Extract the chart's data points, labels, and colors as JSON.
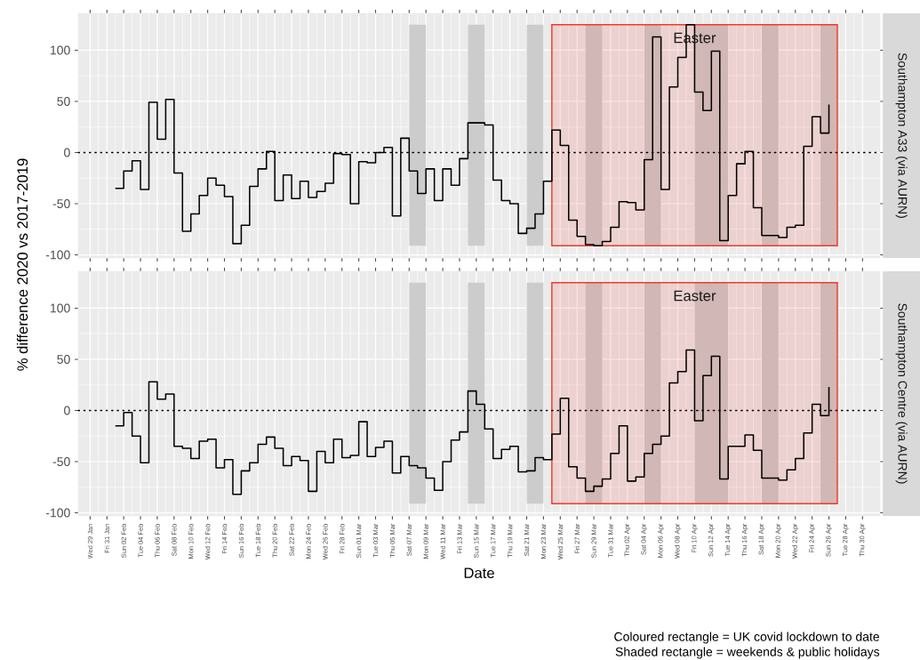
{
  "chart_data": [
    {
      "type": "step",
      "ylabel": "% difference 2020 vs 2017-2019",
      "x": [
        "2020-02-01",
        "2020-02-02",
        "2020-02-03",
        "2020-02-04",
        "2020-02-05",
        "2020-02-06",
        "2020-02-07",
        "2020-02-08",
        "2020-02-09",
        "2020-02-10",
        "2020-02-11",
        "2020-02-12",
        "2020-02-13",
        "2020-02-14",
        "2020-02-15",
        "2020-02-16",
        "2020-02-17",
        "2020-02-18",
        "2020-02-19",
        "2020-02-20",
        "2020-02-21",
        "2020-02-22",
        "2020-02-23",
        "2020-02-24",
        "2020-02-25",
        "2020-02-26",
        "2020-02-27",
        "2020-02-28",
        "2020-02-29",
        "2020-03-01",
        "2020-03-02",
        "2020-03-03",
        "2020-03-04",
        "2020-03-05",
        "2020-03-06",
        "2020-03-07",
        "2020-03-08",
        "2020-03-09",
        "2020-03-10",
        "2020-03-11",
        "2020-03-12",
        "2020-03-13",
        "2020-03-14",
        "2020-03-15",
        "2020-03-16",
        "2020-03-17",
        "2020-03-18",
        "2020-03-19",
        "2020-03-20",
        "2020-03-21",
        "2020-03-22",
        "2020-03-23",
        "2020-03-24",
        "2020-03-25",
        "2020-03-26",
        "2020-03-27",
        "2020-03-28",
        "2020-03-29",
        "2020-03-30",
        "2020-03-31",
        "2020-04-01",
        "2020-04-02",
        "2020-04-03",
        "2020-04-04",
        "2020-04-05",
        "2020-04-06",
        "2020-04-07",
        "2020-04-08",
        "2020-04-09",
        "2020-04-10",
        "2020-04-11",
        "2020-04-12",
        "2020-04-13",
        "2020-04-14",
        "2020-04-15",
        "2020-04-16",
        "2020-04-17",
        "2020-04-18",
        "2020-04-19",
        "2020-04-20",
        "2020-04-21",
        "2020-04-22",
        "2020-04-23",
        "2020-04-24",
        "2020-04-25",
        "2020-04-26"
      ],
      "series": [
        {
          "color": "#000000",
          "values": [
            -35,
            -18,
            -8,
            -36,
            49,
            13,
            52,
            -20,
            -77,
            -60,
            -42,
            -25,
            -32,
            -43,
            -89,
            -71,
            -33,
            -16,
            1,
            -47,
            -22,
            -45,
            -28,
            -44,
            -38,
            -30,
            -1,
            -2,
            -50,
            -9,
            -10,
            0,
            5,
            -62,
            14,
            -18,
            -40,
            -16,
            -47,
            -16,
            -32,
            -6,
            29,
            29,
            27,
            -27,
            -47,
            -50,
            -79,
            -74,
            -60,
            -28,
            22,
            7,
            -66,
            -82,
            -90,
            -91,
            -87,
            -73,
            -48,
            -49,
            -56,
            -7,
            113,
            -36,
            64,
            93,
            125,
            59,
            41,
            99,
            -86,
            -42,
            -11,
            1,
            -54,
            -81,
            -81,
            -83,
            -73,
            -71,
            6,
            35,
            19,
            47
          ]
        }
      ],
      "xlim": [
        "2020-01-27T14:00",
        "2020-05-02T02:00"
      ],
      "ylim": [
        -103,
        136
      ],
      "yticks": [
        -100,
        -50,
        0,
        50,
        100
      ],
      "xticks": [
        {
          "value": "2020-01-29",
          "label": null
        },
        {
          "value": "2020-01-31",
          "label": null
        },
        {
          "value": "2020-02-02",
          "label": null
        },
        {
          "value": "2020-02-04",
          "label": null
        },
        {
          "value": "2020-02-06",
          "label": null
        },
        {
          "value": "2020-02-08",
          "label": null
        },
        {
          "value": "2020-02-10",
          "label": null
        },
        {
          "value": "2020-02-12",
          "label": null
        },
        {
          "value": "2020-02-14",
          "label": null
        },
        {
          "value": "2020-02-16",
          "label": null
        },
        {
          "value": "2020-02-18",
          "label": null
        },
        {
          "value": "2020-02-20",
          "label": null
        },
        {
          "value": "2020-02-22",
          "label": null
        },
        {
          "value": "2020-02-24",
          "label": null
        },
        {
          "value": "2020-02-26",
          "label": null
        },
        {
          "value": "2020-02-28",
          "label": null
        },
        {
          "value": "2020-03-01",
          "label": null
        },
        {
          "value": "2020-03-03",
          "label": null
        },
        {
          "value": "2020-03-05",
          "label": null
        },
        {
          "value": "2020-03-07",
          "label": null
        },
        {
          "value": "2020-03-09",
          "label": null
        },
        {
          "value": "2020-03-11",
          "label": null
        },
        {
          "value": "2020-03-13",
          "label": null
        },
        {
          "value": "2020-03-15",
          "label": null
        },
        {
          "value": "2020-03-17",
          "label": null
        },
        {
          "value": "2020-03-19",
          "label": null
        },
        {
          "value": "2020-03-21",
          "label": null
        },
        {
          "value": "2020-03-23",
          "label": null
        },
        {
          "value": "2020-03-25",
          "label": null
        },
        {
          "value": "2020-03-27",
          "label": null
        },
        {
          "value": "2020-03-29",
          "label": null
        },
        {
          "value": "2020-03-31",
          "label": null
        },
        {
          "value": "2020-04-02",
          "label": null
        },
        {
          "value": "2020-04-04",
          "label": null
        },
        {
          "value": "2020-04-06",
          "label": null
        },
        {
          "value": "2020-04-08",
          "label": null
        },
        {
          "value": "2020-04-10",
          "label": null
        },
        {
          "value": "2020-04-12",
          "label": null
        },
        {
          "value": "2020-04-14",
          "label": null
        },
        {
          "value": "2020-04-16",
          "label": null
        },
        {
          "value": "2020-04-18",
          "label": null
        },
        {
          "value": "2020-04-20",
          "label": null
        },
        {
          "value": "2020-04-22",
          "label": null
        },
        {
          "value": "2020-04-24",
          "label": null
        },
        {
          "value": "2020-04-26",
          "label": null
        },
        {
          "value": "2020-04-28",
          "label": null
        },
        {
          "value": "2020-04-30",
          "label": null
        }
      ],
      "tick_labels": "y",
      "grid": true,
      "ref_lines": [
        {
          "axis": "y",
          "value": 0,
          "color": "#000000",
          "line_style": "dotted"
        }
      ],
      "bands": [
        {
          "axis": "x",
          "from": "2020-03-07",
          "to": "2020-03-09",
          "color": "#cccccc"
        },
        {
          "axis": "x",
          "from": "2020-03-14",
          "to": "2020-03-16",
          "color": "#cccccc"
        },
        {
          "axis": "x",
          "from": "2020-03-21",
          "to": "2020-03-23",
          "color": "#cccccc"
        },
        {
          "axis": "x",
          "from": "2020-03-28",
          "to": "2020-03-30",
          "color": "#cccccc"
        },
        {
          "axis": "x",
          "from": "2020-04-04",
          "to": "2020-04-06",
          "color": "#cccccc"
        },
        {
          "axis": "x",
          "from": "2020-04-10",
          "to": "2020-04-14",
          "color": "#cccccc"
        },
        {
          "axis": "x",
          "from": "2020-04-18",
          "to": "2020-04-20",
          "color": "#cccccc"
        },
        {
          "axis": "x",
          "from": "2020-04-25",
          "to": "2020-04-27",
          "color": "#cccccc"
        },
        {
          "axis": "x",
          "from": "2020-03-24",
          "to": "2020-04-27",
          "color": "#ee3b2b"
        }
      ],
      "annotations": [
        {
          "text": "Easter",
          "x": "2020-04-10",
          "y": 112
        },
        "Southampton A33 (via AURN)"
      ]
    },
    {
      "type": "step",
      "xlabel": "Date",
      "x": [
        "2020-02-01",
        "2020-02-02",
        "2020-02-03",
        "2020-02-04",
        "2020-02-05",
        "2020-02-06",
        "2020-02-07",
        "2020-02-08",
        "2020-02-09",
        "2020-02-10",
        "2020-02-11",
        "2020-02-12",
        "2020-02-13",
        "2020-02-14",
        "2020-02-15",
        "2020-02-16",
        "2020-02-17",
        "2020-02-18",
        "2020-02-19",
        "2020-02-20",
        "2020-02-21",
        "2020-02-22",
        "2020-02-23",
        "2020-02-24",
        "2020-02-25",
        "2020-02-26",
        "2020-02-27",
        "2020-02-28",
        "2020-02-29",
        "2020-03-01",
        "2020-03-02",
        "2020-03-03",
        "2020-03-04",
        "2020-03-05",
        "2020-03-06",
        "2020-03-07",
        "2020-03-08",
        "2020-03-09",
        "2020-03-10",
        "2020-03-11",
        "2020-03-12",
        "2020-03-13",
        "2020-03-14",
        "2020-03-15",
        "2020-03-16",
        "2020-03-17",
        "2020-03-18",
        "2020-03-19",
        "2020-03-20",
        "2020-03-21",
        "2020-03-22",
        "2020-03-23",
        "2020-03-24",
        "2020-03-25",
        "2020-03-26",
        "2020-03-27",
        "2020-03-28",
        "2020-03-29",
        "2020-03-30",
        "2020-03-31",
        "2020-04-01",
        "2020-04-02",
        "2020-04-03",
        "2020-04-04",
        "2020-04-05",
        "2020-04-06",
        "2020-04-07",
        "2020-04-08",
        "2020-04-09",
        "2020-04-10",
        "2020-04-11",
        "2020-04-12",
        "2020-04-13",
        "2020-04-14",
        "2020-04-15",
        "2020-04-16",
        "2020-04-17",
        "2020-04-18",
        "2020-04-19",
        "2020-04-20",
        "2020-04-21",
        "2020-04-22",
        "2020-04-23",
        "2020-04-24",
        "2020-04-25",
        "2020-04-26"
      ],
      "series": [
        {
          "color": "#000000",
          "values": [
            -15,
            -2,
            -25,
            -51,
            28,
            11,
            16,
            -35,
            -37,
            -47,
            -30,
            -28,
            -56,
            -48,
            -82,
            -59,
            -51,
            -33,
            -26,
            -37,
            -54,
            -45,
            -49,
            -79,
            -40,
            -51,
            -28,
            -46,
            -44,
            -11,
            -45,
            -36,
            -30,
            -61,
            -45,
            -54,
            -56,
            -66,
            -78,
            -50,
            -29,
            -21,
            19,
            6,
            -18,
            -47,
            -38,
            -35,
            -60,
            -59,
            -46,
            -48,
            -23,
            12,
            -55,
            -66,
            -79,
            -74,
            -67,
            -42,
            -15,
            -69,
            -65,
            -42,
            -33,
            -25,
            27,
            38,
            59,
            -10,
            34,
            53,
            -67,
            -35,
            -35,
            -24,
            -39,
            -66,
            -66,
            -68,
            -58,
            -47,
            -22,
            6,
            -5,
            23
          ]
        }
      ],
      "xlim": [
        "2020-01-27T14:00",
        "2020-05-02T02:00"
      ],
      "ylim": [
        -103,
        136
      ],
      "yticks": [
        -100,
        -50,
        0,
        50,
        100
      ],
      "xticks": [
        {
          "value": "2020-01-29",
          "label": "Wed 29 Jan"
        },
        {
          "value": "2020-01-31",
          "label": "Fri 31 Jan"
        },
        {
          "value": "2020-02-02",
          "label": "Sun 02 Feb"
        },
        {
          "value": "2020-02-04",
          "label": "Tue 04 Feb"
        },
        {
          "value": "2020-02-06",
          "label": "Thu 06 Feb"
        },
        {
          "value": "2020-02-08",
          "label": "Sat 08 Feb"
        },
        {
          "value": "2020-02-10",
          "label": "Mon 10 Feb"
        },
        {
          "value": "2020-02-12",
          "label": "Wed 12 Feb"
        },
        {
          "value": "2020-02-14",
          "label": "Fri 14 Feb"
        },
        {
          "value": "2020-02-16",
          "label": "Sun 16 Feb"
        },
        {
          "value": "2020-02-18",
          "label": "Tue 18 Feb"
        },
        {
          "value": "2020-02-20",
          "label": "Thu 20 Feb"
        },
        {
          "value": "2020-02-22",
          "label": "Sat 22 Feb"
        },
        {
          "value": "2020-02-24",
          "label": "Mon 24 Feb"
        },
        {
          "value": "2020-02-26",
          "label": "Wed 26 Feb"
        },
        {
          "value": "2020-02-28",
          "label": "Fri 28 Feb"
        },
        {
          "value": "2020-03-01",
          "label": "Sun 01 Mar"
        },
        {
          "value": "2020-03-03",
          "label": "Tue 03 Mar"
        },
        {
          "value": "2020-03-05",
          "label": "Thu 05 Mar"
        },
        {
          "value": "2020-03-07",
          "label": "Sat 07 Mar"
        },
        {
          "value": "2020-03-09",
          "label": "Mon 09 Mar"
        },
        {
          "value": "2020-03-11",
          "label": "Wed 11 Mar"
        },
        {
          "value": "2020-03-13",
          "label": "Fri 13 Mar"
        },
        {
          "value": "2020-03-15",
          "label": "Sun 15 Mar"
        },
        {
          "value": "2020-03-17",
          "label": "Tue 17 Mar"
        },
        {
          "value": "2020-03-19",
          "label": "Thu 19 Mar"
        },
        {
          "value": "2020-03-21",
          "label": "Sat 21 Mar"
        },
        {
          "value": "2020-03-23",
          "label": "Mon 23 Mar"
        },
        {
          "value": "2020-03-25",
          "label": "Wed 25 Mar"
        },
        {
          "value": "2020-03-27",
          "label": "Fri 27 Mar"
        },
        {
          "value": "2020-03-29",
          "label": "Sun 29 Mar"
        },
        {
          "value": "2020-03-31",
          "label": "Tue 31 Mar"
        },
        {
          "value": "2020-04-02",
          "label": "Thu 02 Apr"
        },
        {
          "value": "2020-04-04",
          "label": "Sat 04 Apr"
        },
        {
          "value": "2020-04-06",
          "label": "Mon 06 Apr"
        },
        {
          "value": "2020-04-08",
          "label": "Wed 08 Apr"
        },
        {
          "value": "2020-04-10",
          "label": "Fri 10 Apr"
        },
        {
          "value": "2020-04-12",
          "label": "Sun 12 Apr"
        },
        {
          "value": "2020-04-14",
          "label": "Tue 14 Apr"
        },
        {
          "value": "2020-04-16",
          "label": "Thu 16 Apr"
        },
        {
          "value": "2020-04-18",
          "label": "Sat 18 Apr"
        },
        {
          "value": "2020-04-20",
          "label": "Mon 20 Apr"
        },
        {
          "value": "2020-04-22",
          "label": "Wed 22 Apr"
        },
        {
          "value": "2020-04-24",
          "label": "Fri 24 Apr"
        },
        {
          "value": "2020-04-26",
          "label": "Sun 26 Apr"
        },
        {
          "value": "2020-04-28",
          "label": "Tue 28 Apr"
        },
        {
          "value": "2020-04-30",
          "label": "Thu 30 Apr"
        }
      ],
      "grid": true,
      "ref_lines": [
        {
          "axis": "y",
          "value": 0,
          "color": "#000000",
          "line_style": "dotted"
        }
      ],
      "bands": [
        {
          "axis": "x",
          "from": "2020-03-07",
          "to": "2020-03-09",
          "color": "#cccccc"
        },
        {
          "axis": "x",
          "from": "2020-03-14",
          "to": "2020-03-16",
          "color": "#cccccc"
        },
        {
          "axis": "x",
          "from": "2020-03-21",
          "to": "2020-03-23",
          "color": "#cccccc"
        },
        {
          "axis": "x",
          "from": "2020-03-28",
          "to": "2020-03-30",
          "color": "#cccccc"
        },
        {
          "axis": "x",
          "from": "2020-04-04",
          "to": "2020-04-06",
          "color": "#cccccc"
        },
        {
          "axis": "x",
          "from": "2020-04-10",
          "to": "2020-04-14",
          "color": "#cccccc"
        },
        {
          "axis": "x",
          "from": "2020-04-18",
          "to": "2020-04-20",
          "color": "#cccccc"
        },
        {
          "axis": "x",
          "from": "2020-04-25",
          "to": "2020-04-27",
          "color": "#cccccc"
        },
        {
          "axis": "x",
          "from": "2020-03-24",
          "to": "2020-04-27",
          "color": "#ee3b2b"
        }
      ],
      "annotations": [
        {
          "text": "Easter",
          "x": "2020-04-10",
          "y": 112
        },
        "Southampton Centre (via AURN)",
        "Coloured rectangle = UK covid lockdown to date",
        "Shaded rectangle = weekends & public holidays"
      ]
    }
  ]
}
